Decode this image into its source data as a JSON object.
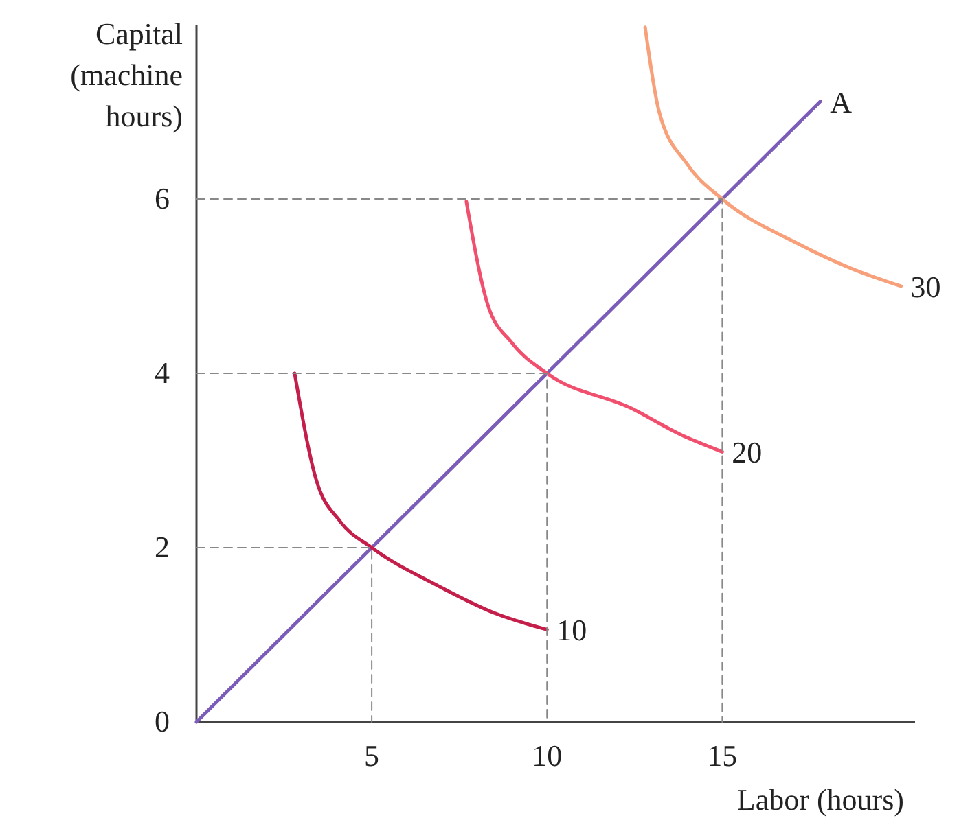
{
  "chart_data": {
    "type": "line",
    "xlabel": "Labor (hours)",
    "ylabel": "Capital (machine hours)",
    "xlim": [
      0,
      20.5
    ],
    "ylim": [
      0,
      8
    ],
    "xticks": [
      5,
      10,
      15
    ],
    "yticks": [
      0,
      2,
      4,
      6
    ],
    "grid": false,
    "marker": "none",
    "series": [
      {
        "name": "A",
        "color": "#7b5cb8",
        "x": [
          0,
          17.8
        ],
        "values": [
          0,
          7.12
        ],
        "line_style": "solid"
      },
      {
        "name": "10",
        "color": "#c41e4a",
        "x": [
          2.8,
          3.4,
          4.1,
          5,
          6.9,
          8.5,
          10
        ],
        "values": [
          4.0,
          2.8,
          2.3,
          2.0,
          1.56,
          1.25,
          1.06
        ],
        "line_style": "solid"
      },
      {
        "name": "20",
        "color": "#f0506e",
        "x": [
          7.7,
          8.3,
          9,
          10,
          12.4,
          13.8,
          15
        ],
        "values": [
          5.97,
          4.8,
          4.35,
          4.0,
          3.6,
          3.3,
          3.1
        ],
        "line_style": "solid"
      },
      {
        "name": "30",
        "color": "#f7a07a",
        "x": [
          12.8,
          13.2,
          14,
          15,
          17.1,
          18.7,
          20.1
        ],
        "values": [
          7.97,
          7.0,
          6.4,
          6.0,
          5.5,
          5.2,
          5.0
        ],
        "line_style": "solid"
      },
      {
        "color": "#888888",
        "x": [
          0,
          5,
          5
        ],
        "values": [
          2,
          2,
          0
        ],
        "line_style": "dashed"
      },
      {
        "color": "#888888",
        "x": [
          0,
          10,
          10
        ],
        "values": [
          4,
          4,
          0
        ],
        "line_style": "dashed"
      },
      {
        "color": "#888888",
        "x": [
          0,
          15,
          15
        ],
        "values": [
          6,
          6,
          0
        ],
        "line_style": "dashed"
      }
    ]
  }
}
